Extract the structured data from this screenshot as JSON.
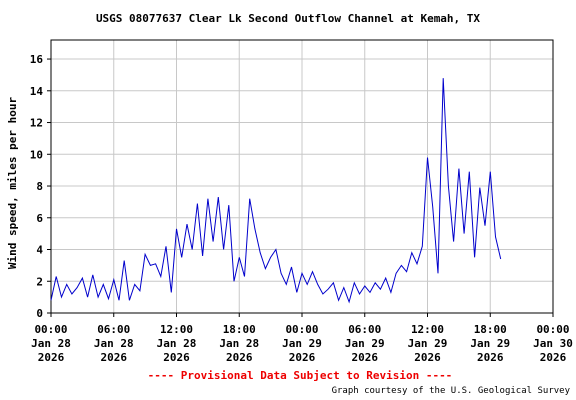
{
  "chart_data": {
    "type": "line",
    "title": "USGS 08077637 Clear Lk Second Outflow Channel at Kemah, TX",
    "y_label": "Wind speed, miles per hour",
    "note": "---- Provisional Data Subject to Revision ----",
    "credit": "Graph courtesy of the U.S. Geological Survey",
    "grid": true,
    "x": [
      "2026-01-28T00:00",
      "2026-01-28T00:30",
      "2026-01-28T01:00",
      "2026-01-28T01:30",
      "2026-01-28T02:00",
      "2026-01-28T02:30",
      "2026-01-28T03:00",
      "2026-01-28T03:30",
      "2026-01-28T04:00",
      "2026-01-28T04:30",
      "2026-01-28T05:00",
      "2026-01-28T05:30",
      "2026-01-28T06:00",
      "2026-01-28T06:30",
      "2026-01-28T07:00",
      "2026-01-28T07:30",
      "2026-01-28T08:00",
      "2026-01-28T08:30",
      "2026-01-28T09:00",
      "2026-01-28T09:30",
      "2026-01-28T10:00",
      "2026-01-28T10:30",
      "2026-01-28T11:00",
      "2026-01-28T11:30",
      "2026-01-28T12:00",
      "2026-01-28T12:30",
      "2026-01-28T13:00",
      "2026-01-28T13:30",
      "2026-01-28T14:00",
      "2026-01-28T14:30",
      "2026-01-28T15:00",
      "2026-01-28T15:30",
      "2026-01-28T16:00",
      "2026-01-28T16:30",
      "2026-01-28T17:00",
      "2026-01-28T17:30",
      "2026-01-28T18:00",
      "2026-01-28T18:30",
      "2026-01-28T19:00",
      "2026-01-28T19:30",
      "2026-01-28T20:00",
      "2026-01-28T20:30",
      "2026-01-28T21:00",
      "2026-01-28T21:30",
      "2026-01-28T22:00",
      "2026-01-28T22:30",
      "2026-01-28T23:00",
      "2026-01-28T23:30",
      "2026-01-29T00:00",
      "2026-01-29T00:30",
      "2026-01-29T01:00",
      "2026-01-29T01:30",
      "2026-01-29T02:00",
      "2026-01-29T02:30",
      "2026-01-29T03:00",
      "2026-01-29T03:30",
      "2026-01-29T04:00",
      "2026-01-29T04:30",
      "2026-01-29T05:00",
      "2026-01-29T05:30",
      "2026-01-29T06:00",
      "2026-01-29T06:30",
      "2026-01-29T07:00",
      "2026-01-29T07:30",
      "2026-01-29T08:00",
      "2026-01-29T08:30",
      "2026-01-29T09:00",
      "2026-01-29T09:30",
      "2026-01-29T10:00",
      "2026-01-29T10:30",
      "2026-01-29T11:00",
      "2026-01-29T11:30",
      "2026-01-29T12:00",
      "2026-01-29T12:30",
      "2026-01-29T13:00",
      "2026-01-29T13:30",
      "2026-01-29T14:00",
      "2026-01-29T14:30",
      "2026-01-29T15:00",
      "2026-01-29T15:30",
      "2026-01-29T16:00",
      "2026-01-29T16:30",
      "2026-01-29T17:00",
      "2026-01-29T17:30",
      "2026-01-29T18:00",
      "2026-01-29T18:30",
      "2026-01-29T19:00"
    ],
    "series": [
      {
        "color": "#0000cc",
        "values": [
          0.8,
          2.3,
          1.0,
          1.8,
          1.2,
          1.6,
          2.2,
          1.0,
          2.4,
          1.0,
          1.8,
          0.9,
          2.1,
          0.8,
          3.3,
          0.8,
          1.8,
          1.4,
          3.7,
          3.0,
          3.1,
          2.3,
          4.2,
          1.3,
          5.3,
          3.5,
          5.6,
          4.0,
          6.9,
          3.6,
          7.2,
          4.5,
          7.3,
          4.0,
          6.8,
          2.0,
          3.5,
          2.3,
          7.2,
          5.3,
          3.8,
          2.8,
          3.5,
          4.0,
          2.5,
          1.8,
          2.9,
          1.3,
          2.5,
          1.8,
          2.6,
          1.8,
          1.2,
          1.5,
          1.9,
          0.8,
          1.6,
          0.7,
          1.9,
          1.2,
          1.7,
          1.3,
          1.9,
          1.5,
          2.2,
          1.3,
          2.5,
          3.0,
          2.6,
          3.8,
          3.1,
          4.2,
          9.8,
          6.7,
          2.5,
          14.8,
          8.0,
          4.5,
          9.1,
          5.0,
          8.9,
          3.5,
          7.9,
          5.5,
          8.9,
          4.8,
          3.4
        ]
      }
    ],
    "xlim": [
      "2026-01-28T00:00",
      "2026-01-30T00:00"
    ],
    "xticks": [
      {
        "value": "2026-01-28T00:00",
        "label": [
          "00:00",
          "Jan 28",
          "2026"
        ]
      },
      {
        "value": "2026-01-28T06:00",
        "label": [
          "06:00",
          "Jan 28",
          "2026"
        ]
      },
      {
        "value": "2026-01-28T12:00",
        "label": [
          "12:00",
          "Jan 28",
          "2026"
        ]
      },
      {
        "value": "2026-01-28T18:00",
        "label": [
          "18:00",
          "Jan 28",
          "2026"
        ]
      },
      {
        "value": "2026-01-29T00:00",
        "label": [
          "00:00",
          "Jan 29",
          "2026"
        ]
      },
      {
        "value": "2026-01-29T06:00",
        "label": [
          "06:00",
          "Jan 29",
          "2026"
        ]
      },
      {
        "value": "2026-01-29T12:00",
        "label": [
          "12:00",
          "Jan 29",
          "2026"
        ]
      },
      {
        "value": "2026-01-29T18:00",
        "label": [
          "18:00",
          "Jan 29",
          "2026"
        ]
      },
      {
        "value": "2026-01-30T00:00",
        "label": [
          "00:00",
          "Jan 30",
          "2026"
        ]
      }
    ],
    "ylim": [
      0,
      17.2
    ],
    "yticks": [
      0,
      2,
      4,
      6,
      8,
      10,
      12,
      14,
      16
    ]
  }
}
